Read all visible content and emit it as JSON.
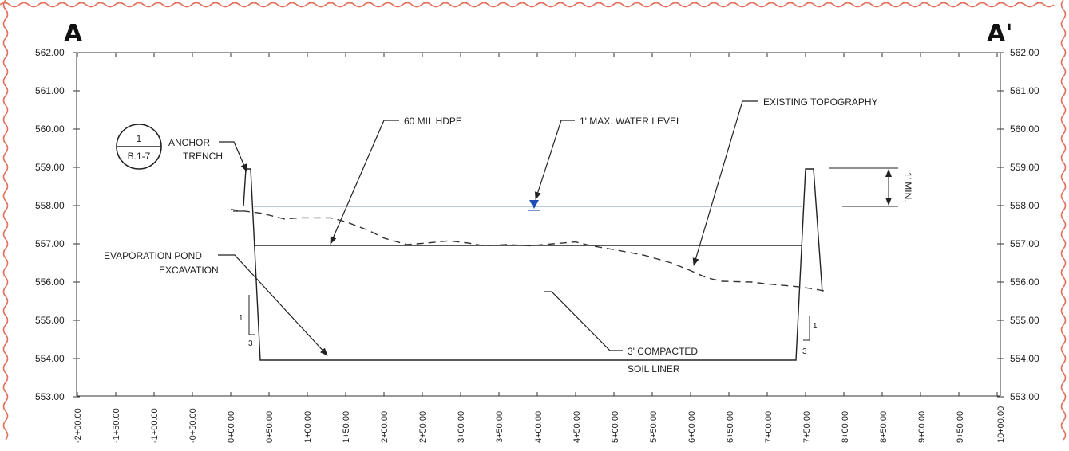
{
  "section": {
    "left_label": "A",
    "right_label": "A'"
  },
  "detail_callout": {
    "number": "1",
    "sheet": "B.1-7"
  },
  "annotations": {
    "anchor_trench": [
      "ANCHOR",
      "TRENCH"
    ],
    "hdpe": "60 MIL HDPE",
    "water_level": "1' MAX. WATER LEVEL",
    "existing_topography": "EXISTING TOPOGRAPHY",
    "excavation": [
      "EVAPORATION POND",
      "EXCAVATION"
    ],
    "soil_liner": [
      "3' COMPACTED",
      "SOIL LINER"
    ],
    "freeboard": "1' MIN."
  },
  "slope_ratio": {
    "rise": "1",
    "run": "3"
  },
  "axes": {
    "elevation_labels": [
      "562.00",
      "561.00",
      "560.00",
      "559.00",
      "558.00",
      "557.00",
      "556.00",
      "555.00",
      "554.00",
      "553.00"
    ],
    "station_labels": [
      "-2+00.00",
      "-1+50.00",
      "-1+00.00",
      "-0+50.00",
      "0+00.00",
      "0+50.00",
      "1+00.00",
      "1+50.00",
      "2+00.00",
      "2+50.00",
      "3+00.00",
      "3+50.00",
      "4+00.00",
      "4+50.00",
      "5+00.00",
      "5+50.00",
      "6+00.00",
      "6+50.00",
      "7+00.00",
      "7+50.00",
      "8+00.00",
      "8+50.00",
      "9+00.00",
      "9+50.00",
      "10+00.00"
    ]
  },
  "profile": {
    "existing_ground": [
      [
        0,
        557.9
      ],
      [
        20,
        557.85
      ],
      [
        40,
        557.8
      ],
      [
        70,
        557.65
      ],
      [
        90,
        557.68
      ],
      [
        130,
        557.68
      ],
      [
        150,
        557.58
      ],
      [
        180,
        557.35
      ],
      [
        200,
        557.15
      ],
      [
        230,
        556.98
      ],
      [
        260,
        557.03
      ],
      [
        285,
        557.08
      ],
      [
        310,
        557.02
      ],
      [
        330,
        556.95
      ],
      [
        360,
        556.98
      ],
      [
        390,
        556.95
      ],
      [
        420,
        557.0
      ],
      [
        450,
        557.05
      ],
      [
        470,
        556.95
      ],
      [
        500,
        556.85
      ],
      [
        540,
        556.7
      ],
      [
        575,
        556.5
      ],
      [
        600,
        556.3
      ],
      [
        620,
        556.12
      ],
      [
        640,
        556.02
      ],
      [
        680,
        556.0
      ],
      [
        700,
        555.95
      ],
      [
        740,
        555.88
      ],
      [
        760,
        555.82
      ],
      [
        780,
        555.75
      ]
    ],
    "water_level_elev": 558.0,
    "liner_top_elev": 557.0,
    "pond_bottom_elev": 554.0,
    "berm_crest_elev": 559.0
  },
  "colors": {
    "water_marker": "#1f4fb5",
    "water_line": "#9db8cf",
    "border": "#e2705a"
  }
}
